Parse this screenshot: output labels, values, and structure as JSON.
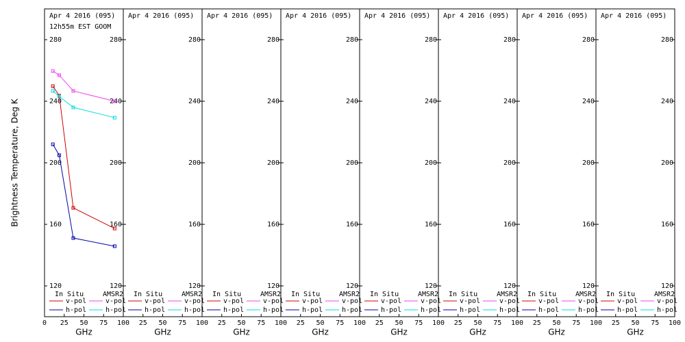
{
  "chart_data": [
    {
      "type": "line",
      "title": "Apr 4 2016 (095)",
      "subtitle": "12h55m EST GOOM",
      "ylabel": "Brightness Temperature, Deg K",
      "xlabel": "GHz",
      "xlim": [
        0,
        100
      ],
      "ylim": [
        100,
        300
      ],
      "xticks": [
        0,
        25,
        50,
        75,
        100
      ],
      "yticks": [
        120,
        160,
        200,
        240,
        280
      ],
      "x": [
        10.6,
        18.7,
        36.5,
        89
      ],
      "series": [
        {
          "name": "v-pol",
          "source": "In Situ",
          "color": "#cc0000",
          "values": [
            249.8,
            243.6,
            170.7,
            157.3
          ]
        },
        {
          "name": "h-pol",
          "source": "In Situ",
          "color": "#0000aa",
          "values": [
            212,
            204.9,
            151.1,
            145.8
          ]
        },
        {
          "name": "v-pol",
          "source": "AMSR2",
          "color": "#ee44ee",
          "values": [
            259.6,
            256.9,
            246.7,
            240
          ]
        },
        {
          "name": "h-pol",
          "source": "AMSR2",
          "color": "#00dddd",
          "values": [
            246.7,
            243.1,
            236,
            229.3
          ]
        }
      ]
    },
    {
      "type": "line",
      "title": "Apr 4 2016 (095)",
      "xlabel": "GHz",
      "xlim": [
        0,
        100
      ],
      "ylim": [
        100,
        300
      ],
      "xticks": [
        25,
        50,
        75,
        100
      ],
      "yticks": [
        120,
        160,
        200,
        240,
        280
      ],
      "x": [],
      "series": [
        {
          "name": "v-pol",
          "source": "In Situ",
          "color": "#cc0000",
          "values": []
        },
        {
          "name": "h-pol",
          "source": "In Situ",
          "color": "#0000aa",
          "values": []
        },
        {
          "name": "v-pol",
          "source": "AMSR2",
          "color": "#ee44ee",
          "values": []
        },
        {
          "name": "h-pol",
          "source": "AMSR2",
          "color": "#00dddd",
          "values": []
        }
      ]
    },
    {
      "type": "line",
      "title": "Apr 4 2016 (095)",
      "xlabel": "GHz",
      "xlim": [
        0,
        100
      ],
      "ylim": [
        100,
        300
      ],
      "xticks": [
        25,
        50,
        75,
        100
      ],
      "yticks": [
        120,
        160,
        200,
        240,
        280
      ],
      "x": [],
      "series": [
        {
          "name": "v-pol",
          "source": "In Situ",
          "color": "#cc0000",
          "values": []
        },
        {
          "name": "h-pol",
          "source": "In Situ",
          "color": "#0000aa",
          "values": []
        },
        {
          "name": "v-pol",
          "source": "AMSR2",
          "color": "#ee44ee",
          "values": []
        },
        {
          "name": "h-pol",
          "source": "AMSR2",
          "color": "#00dddd",
          "values": []
        }
      ]
    },
    {
      "type": "line",
      "title": "Apr 4 2016 (095)",
      "xlabel": "GHz",
      "xlim": [
        0,
        100
      ],
      "ylim": [
        100,
        300
      ],
      "xticks": [
        25,
        50,
        75,
        100
      ],
      "yticks": [
        120,
        160,
        200,
        240,
        280
      ],
      "x": [],
      "series": [
        {
          "name": "v-pol",
          "source": "In Situ",
          "color": "#cc0000",
          "values": []
        },
        {
          "name": "h-pol",
          "source": "In Situ",
          "color": "#0000aa",
          "values": []
        },
        {
          "name": "v-pol",
          "source": "AMSR2",
          "color": "#ee44ee",
          "values": []
        },
        {
          "name": "h-pol",
          "source": "AMSR2",
          "color": "#00dddd",
          "values": []
        }
      ]
    },
    {
      "type": "line",
      "title": "Apr 4 2016 (095)",
      "xlabel": "GHz",
      "xlim": [
        0,
        100
      ],
      "ylim": [
        100,
        300
      ],
      "xticks": [
        25,
        50,
        75,
        100
      ],
      "yticks": [
        120,
        160,
        200,
        240,
        280
      ],
      "x": [],
      "series": [
        {
          "name": "v-pol",
          "source": "In Situ",
          "color": "#cc0000",
          "values": []
        },
        {
          "name": "h-pol",
          "source": "In Situ",
          "color": "#0000aa",
          "values": []
        },
        {
          "name": "v-pol",
          "source": "AMSR2",
          "color": "#ee44ee",
          "values": []
        },
        {
          "name": "h-pol",
          "source": "AMSR2",
          "color": "#00dddd",
          "values": []
        }
      ]
    },
    {
      "type": "line",
      "title": "Apr 4 2016 (095)",
      "xlabel": "GHz",
      "xlim": [
        0,
        100
      ],
      "ylim": [
        100,
        300
      ],
      "xticks": [
        25,
        50,
        75,
        100
      ],
      "yticks": [
        120,
        160,
        200,
        240,
        280
      ],
      "x": [],
      "series": [
        {
          "name": "v-pol",
          "source": "In Situ",
          "color": "#cc0000",
          "values": []
        },
        {
          "name": "h-pol",
          "source": "In Situ",
          "color": "#0000aa",
          "values": []
        },
        {
          "name": "v-pol",
          "source": "AMSR2",
          "color": "#ee44ee",
          "values": []
        },
        {
          "name": "h-pol",
          "source": "AMSR2",
          "color": "#00dddd",
          "values": []
        }
      ]
    },
    {
      "type": "line",
      "title": "Apr 4 2016 (095)",
      "xlabel": "GHz",
      "xlim": [
        0,
        100
      ],
      "ylim": [
        100,
        300
      ],
      "xticks": [
        25,
        50,
        75,
        100
      ],
      "yticks": [
        120,
        160,
        200,
        240,
        280
      ],
      "x": [],
      "series": [
        {
          "name": "v-pol",
          "source": "In Situ",
          "color": "#cc0000",
          "values": []
        },
        {
          "name": "h-pol",
          "source": "In Situ",
          "color": "#0000aa",
          "values": []
        },
        {
          "name": "v-pol",
          "source": "AMSR2",
          "color": "#ee44ee",
          "values": []
        },
        {
          "name": "h-pol",
          "source": "AMSR2",
          "color": "#00dddd",
          "values": []
        }
      ]
    },
    {
      "type": "line",
      "title": "Apr 4 2016 (095)",
      "xlabel": "GHz",
      "xlim": [
        0,
        100
      ],
      "ylim": [
        100,
        300
      ],
      "xticks": [
        25,
        50,
        75,
        100
      ],
      "yticks": [
        120,
        160,
        200,
        240,
        280
      ],
      "x": [],
      "series": [
        {
          "name": "v-pol",
          "source": "In Situ",
          "color": "#cc0000",
          "values": []
        },
        {
          "name": "h-pol",
          "source": "In Situ",
          "color": "#0000aa",
          "values": []
        },
        {
          "name": "v-pol",
          "source": "AMSR2",
          "color": "#ee44ee",
          "values": []
        },
        {
          "name": "h-pol",
          "source": "AMSR2",
          "color": "#00dddd",
          "values": []
        }
      ]
    }
  ]
}
